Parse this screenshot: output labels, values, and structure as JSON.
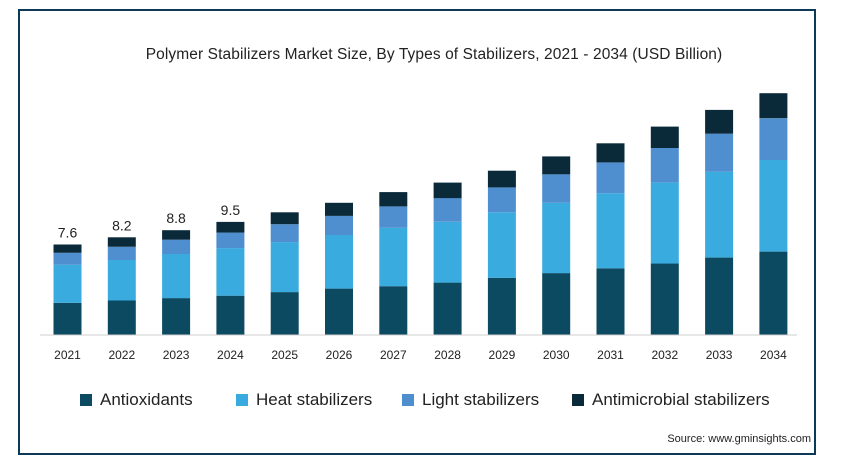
{
  "chart_data": {
    "type": "bar",
    "stacked": true,
    "title": "Polymer Stabilizers Market Size, By Types of Stabilizers, 2021 - 2034 (USD Billion)",
    "categories": [
      "2021",
      "2022",
      "2023",
      "2024",
      "2025",
      "2026",
      "2027",
      "2028",
      "2029",
      "2030",
      "2031",
      "2032",
      "2033",
      "2034"
    ],
    "total_labels": [
      "7.6",
      "8.2",
      "8.8",
      "9.5",
      "",
      "",
      "",
      "",
      "",
      "",
      "",
      "",
      "",
      ""
    ],
    "series": [
      {
        "name": "Antioxidants",
        "color": "#0c4a62",
        "values": [
          2.7,
          2.9,
          3.1,
          3.3,
          3.6,
          3.9,
          4.1,
          4.4,
          4.8,
          5.2,
          5.6,
          6.0,
          6.5,
          7.0
        ]
      },
      {
        "name": "Heat stabilizers",
        "color": "#3aabdf",
        "values": [
          3.2,
          3.4,
          3.7,
          4.0,
          4.2,
          4.5,
          4.9,
          5.1,
          5.5,
          5.9,
          6.3,
          6.8,
          7.2,
          7.7
        ]
      },
      {
        "name": "Light stabilizers",
        "color": "#4f8fd0",
        "values": [
          1.0,
          1.1,
          1.2,
          1.3,
          1.5,
          1.6,
          1.8,
          2.0,
          2.1,
          2.4,
          2.6,
          2.9,
          3.2,
          3.5
        ]
      },
      {
        "name": "Antimicrobial stabilizers",
        "color": "#0a2a3a",
        "values": [
          0.7,
          0.8,
          0.8,
          0.9,
          1.0,
          1.1,
          1.2,
          1.3,
          1.4,
          1.5,
          1.6,
          1.8,
          2.0,
          2.1
        ]
      }
    ],
    "ylim": [
      0,
      22
    ],
    "grid": false,
    "legend_position": "bottom"
  },
  "source": "Source: www.gminsights.com"
}
